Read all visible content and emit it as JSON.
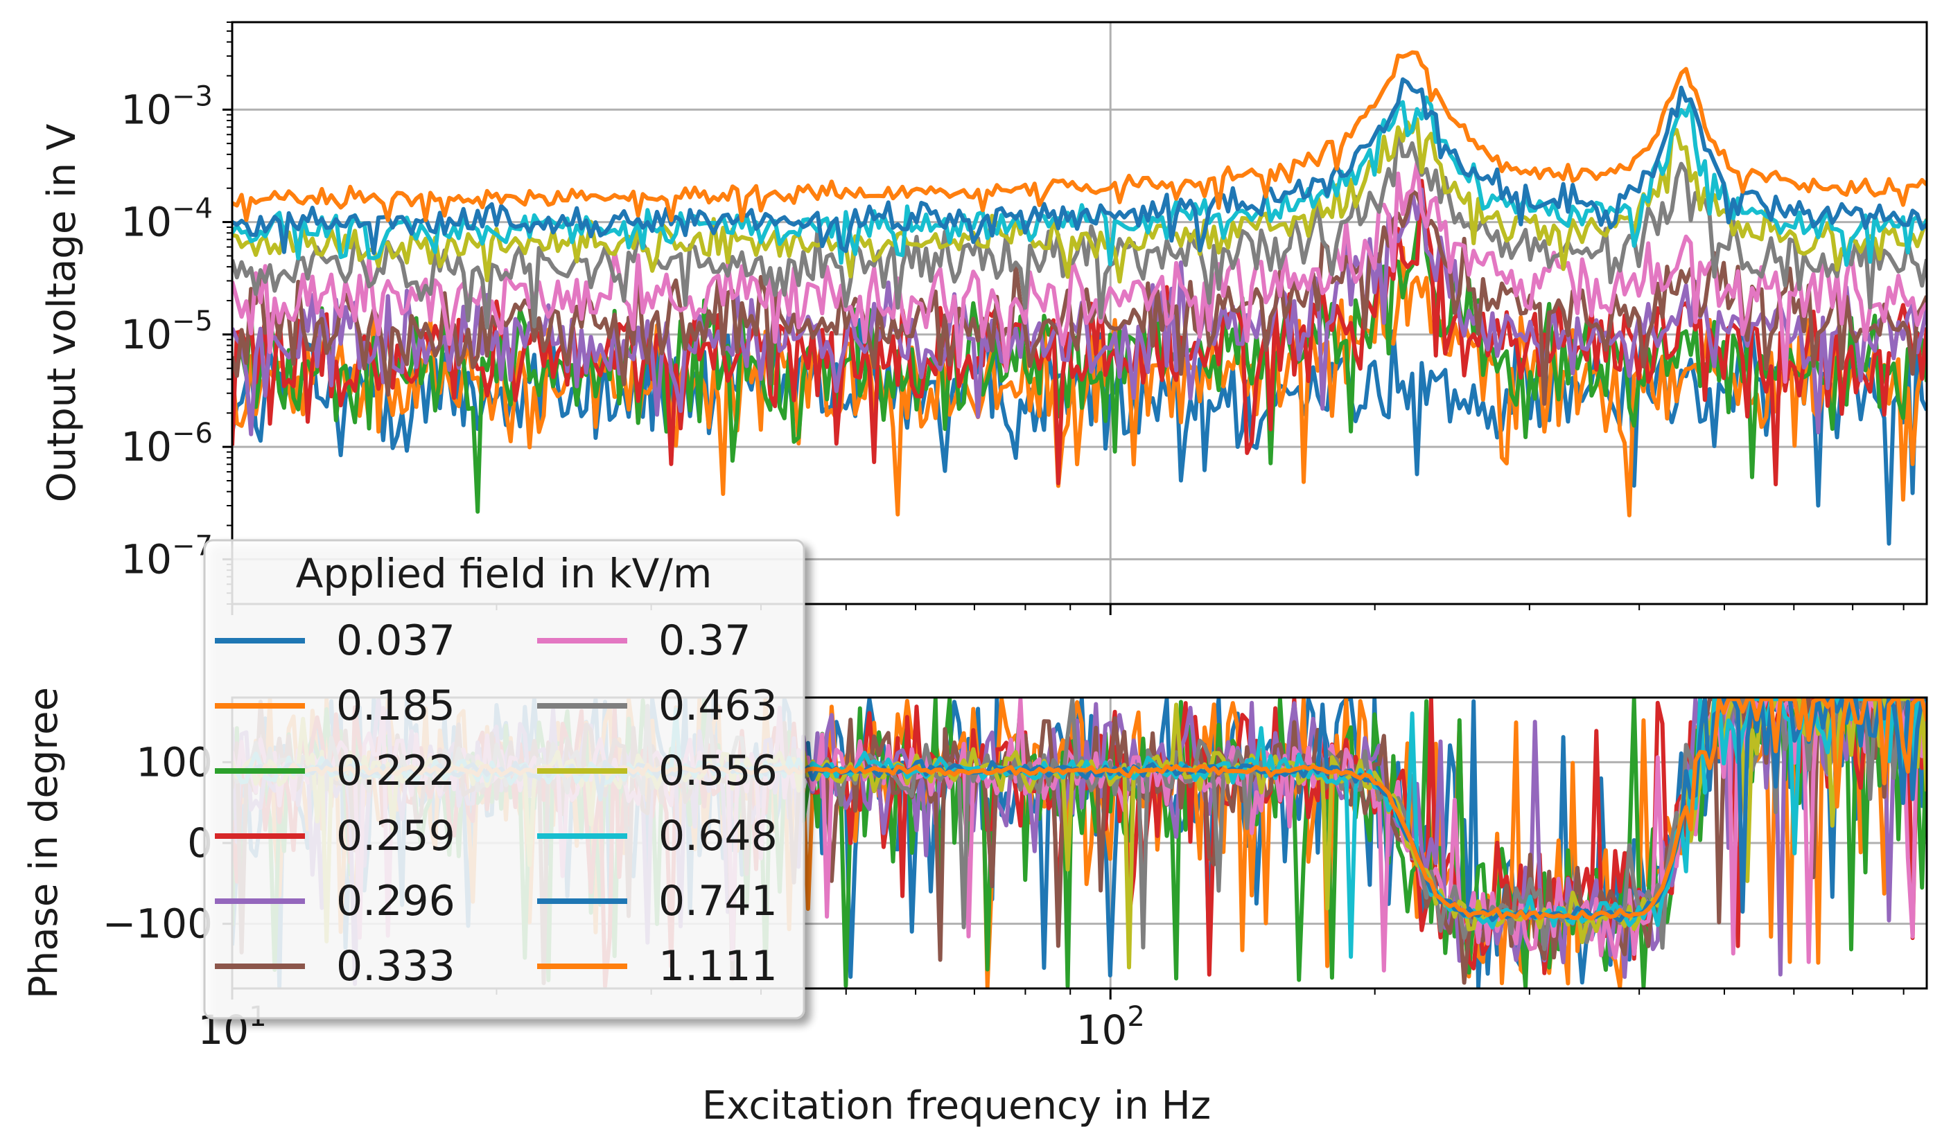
{
  "chart_data": [
    {
      "type": "line",
      "panel": "magnitude",
      "title": "",
      "xlabel": "Excitation frequency in Hz",
      "ylabel": "Output voltage in V",
      "xscale": "log",
      "yscale": "log",
      "xlim": [
        10,
        850
      ],
      "ylim": [
        4e-08,
        0.006
      ],
      "grid": true,
      "yticks": [
        {
          "value": 0.001,
          "base": "10",
          "exp": "−3"
        },
        {
          "value": 0.0001,
          "base": "10",
          "exp": "−4"
        },
        {
          "value": 1e-05,
          "base": "10",
          "exp": "−5"
        },
        {
          "value": 1e-06,
          "base": "10",
          "exp": "−6"
        },
        {
          "value": 1e-07,
          "base": "10",
          "exp": "−7"
        }
      ],
      "resonances_hz": [
        220,
        450
      ],
      "series": [
        {
          "name": "0.037",
          "color": "#1f77b4",
          "baseline": 3e-06,
          "peak1": 3e-06,
          "peak2": 2.5e-06
        },
        {
          "name": "0.185",
          "color": "#ff7f0e",
          "baseline": 3.5e-06,
          "peak1": 3e-05,
          "peak2": 4e-06
        },
        {
          "name": "0.222",
          "color": "#2ca02c",
          "baseline": 4.5e-06,
          "peak1": 5.5e-05,
          "peak2": 8e-06
        },
        {
          "name": "0.259",
          "color": "#d62728",
          "baseline": 6e-06,
          "peak1": 7.5e-05,
          "peak2": 1.2e-05
        },
        {
          "name": "0.296",
          "color": "#9467bd",
          "baseline": 8e-06,
          "peak1": 0.0001,
          "peak2": 2e-05
        },
        {
          "name": "0.333",
          "color": "#8c564b",
          "baseline": 1.2e-05,
          "peak1": 0.00014,
          "peak2": 3.5e-05
        },
        {
          "name": "0.37",
          "color": "#e377c2",
          "baseline": 2e-05,
          "peak1": 0.0002,
          "peak2": 8e-05
        },
        {
          "name": "0.463",
          "color": "#7f7f7f",
          "baseline": 4e-05,
          "peak1": 0.0004,
          "peak2": 0.00025
        },
        {
          "name": "0.556",
          "color": "#bcbd22",
          "baseline": 6e-05,
          "peak1": 0.0008,
          "peak2": 0.0006
        },
        {
          "name": "0.648",
          "color": "#17becf",
          "baseline": 8e-05,
          "peak1": 0.0013,
          "peak2": 0.001
        },
        {
          "name": "0.741",
          "color": "#1f77b4",
          "baseline": 9e-05,
          "peak1": 0.0017,
          "peak2": 0.0015
        },
        {
          "name": "1.111",
          "color": "#ff7f0e",
          "baseline": 0.00014,
          "peak1": 0.0033,
          "peak2": 0.0022
        }
      ]
    },
    {
      "type": "line",
      "panel": "phase",
      "title": "",
      "xlabel": "Excitation frequency in Hz",
      "ylabel": "Phase in degree",
      "xscale": "log",
      "xlim": [
        10,
        850
      ],
      "ylim": [
        -180,
        180
      ],
      "grid": true,
      "yticks": [
        {
          "value": 100,
          "label": "100"
        },
        {
          "value": 0,
          "label": "0"
        },
        {
          "value": -100,
          "label": "−100"
        }
      ],
      "phase_levels_deg": [
        90,
        -90,
        180
      ],
      "transition_freqs_hz": [
        220,
        450
      ]
    }
  ],
  "xaxis": {
    "ticks": [
      {
        "value": 10,
        "base": "10",
        "exp": "1"
      },
      {
        "value": 100,
        "base": "10",
        "exp": "2"
      }
    ]
  },
  "legend": {
    "title": "Applied field in kV/m",
    "placement": "lower-left",
    "entries": [
      "0.037",
      "0.185",
      "0.222",
      "0.259",
      "0.296",
      "0.333",
      "0.37",
      "0.463",
      "0.556",
      "0.648",
      "0.741",
      "1.111"
    ]
  }
}
